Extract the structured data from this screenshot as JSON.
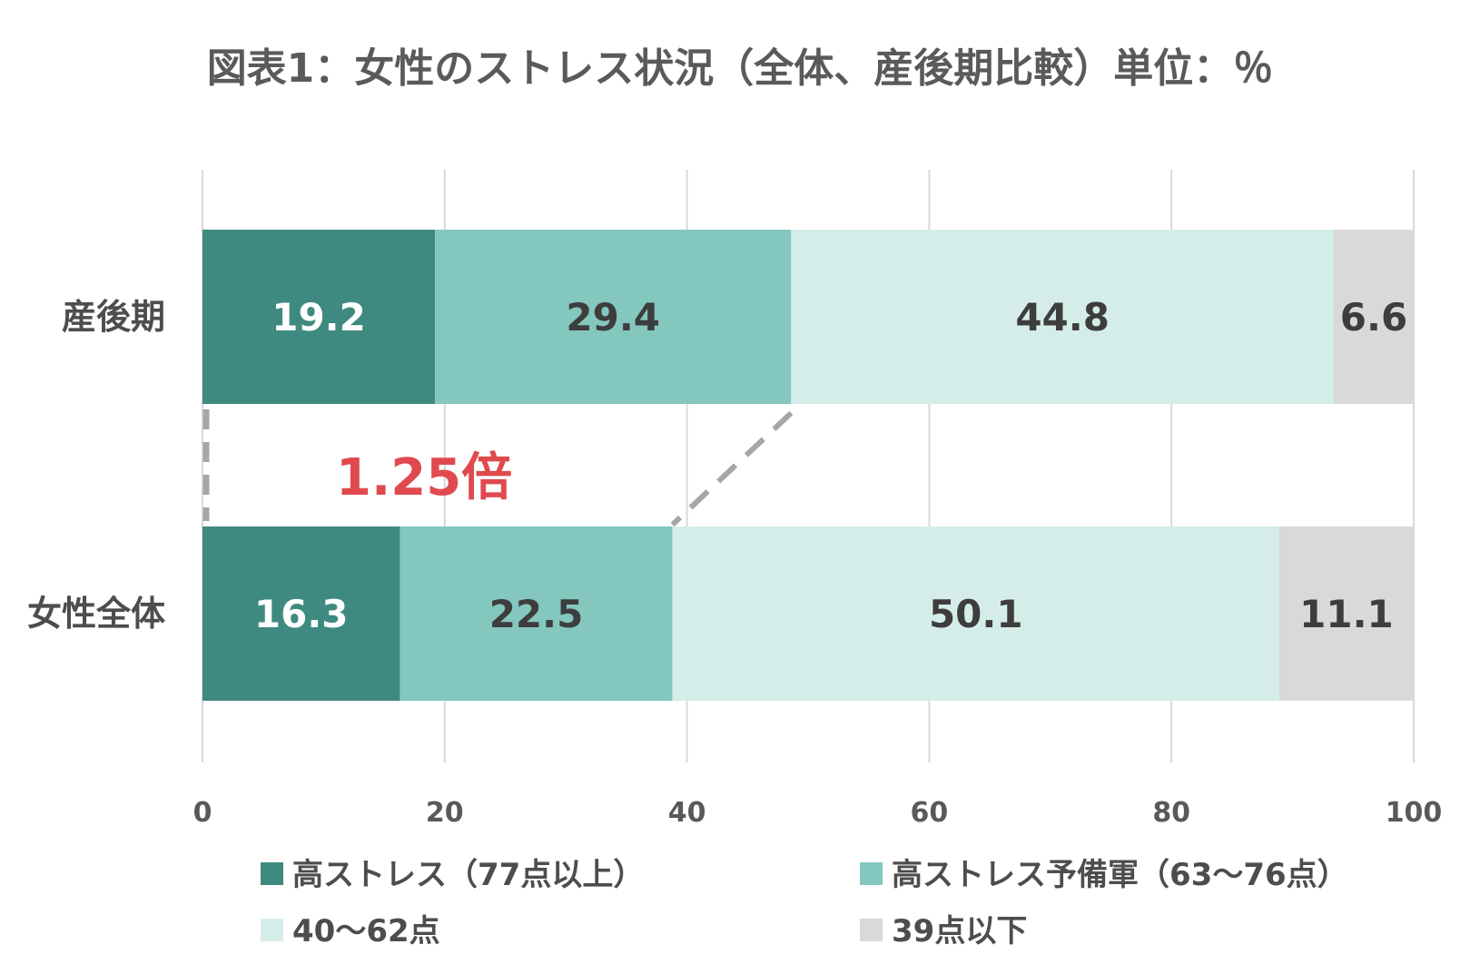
{
  "chart_data": {
    "type": "bar",
    "orientation": "horizontal",
    "stacked": true,
    "title": "図表1：女性のストレス状況（全体、産後期比較）単位：％",
    "categories": [
      "産後期",
      "女性全体"
    ],
    "series": [
      {
        "name": "高ストレス（77点以上）",
        "values": [
          19.2,
          16.3
        ],
        "color": "#3f8a80",
        "label_color": "#ffffff"
      },
      {
        "name": "高ストレス予備軍（63〜76点）",
        "values": [
          29.4,
          22.5
        ],
        "color": "#84c7be",
        "label_color": "#3d3d3d"
      },
      {
        "name": "40〜62点",
        "values": [
          44.8,
          50.1
        ],
        "color": "#d5ede9",
        "label_color": "#3d3d3d"
      },
      {
        "name": "39点以下",
        "values": [
          6.6,
          11.1
        ],
        "color": "#d9d9d9",
        "label_color": "#3d3d3d"
      }
    ],
    "xlim": [
      0,
      100
    ],
    "xticks": [
      0,
      20,
      40,
      60,
      80,
      100
    ],
    "grid": true,
    "legend_position": "bottom",
    "annotation": {
      "text": "1.25倍",
      "color": "#e04a4f"
    }
  }
}
